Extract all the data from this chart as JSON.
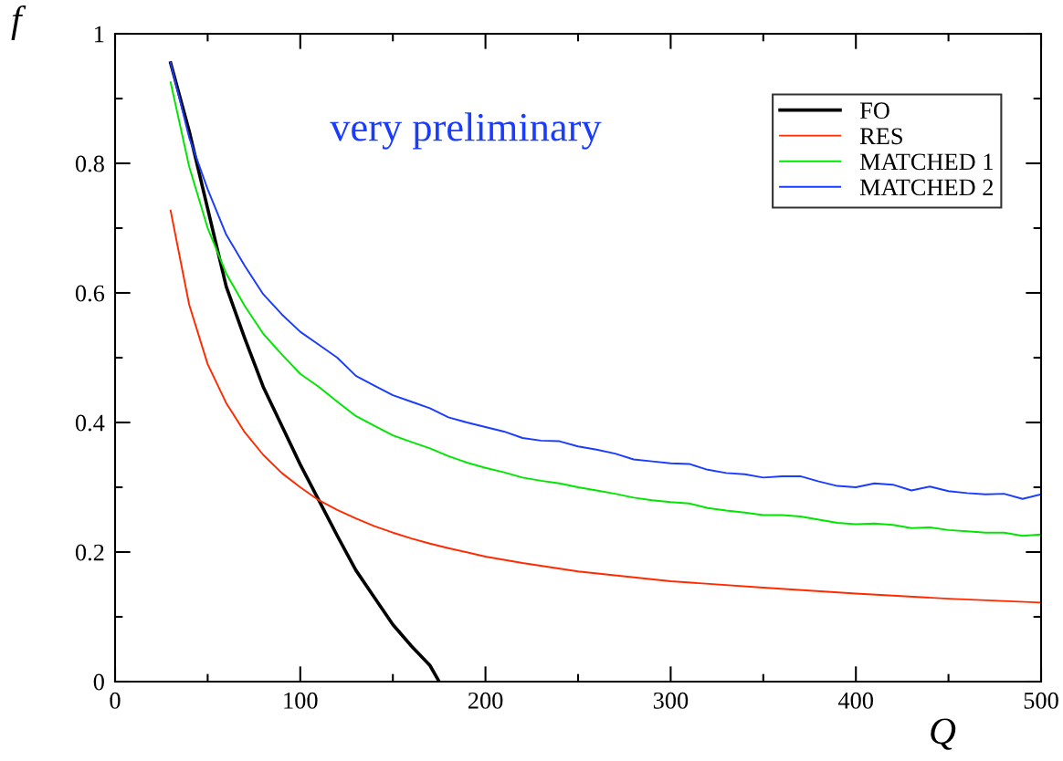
{
  "chart_data": {
    "type": "line",
    "xlabel": "Q",
    "ylabel": "f",
    "annotations": [
      "very preliminary"
    ],
    "xlim": [
      0,
      500
    ],
    "xticks": [
      0,
      100,
      200,
      300,
      400,
      500
    ],
    "ylim": [
      0,
      1
    ],
    "yticks": [
      0,
      0.2,
      0.4,
      0.6,
      0.8,
      1
    ],
    "grid": false,
    "legend": "top right",
    "marker": "none",
    "line_style": "solid",
    "series": [
      {
        "name": "FO",
        "color": "#000000",
        "x": [
          30,
          40,
          50,
          60,
          70,
          80,
          90,
          100,
          110,
          120,
          130,
          140,
          150,
          160,
          170,
          175
        ],
        "values": [
          0.955,
          0.85,
          0.73,
          0.61,
          0.53,
          0.455,
          0.395,
          0.335,
          0.28,
          0.225,
          0.172,
          0.13,
          0.088,
          0.055,
          0.025,
          0
        ]
      },
      {
        "name": "RES",
        "color": "#ff2a00",
        "x": [
          30,
          40,
          50,
          60,
          70,
          80,
          90,
          100,
          110,
          120,
          130,
          140,
          150,
          160,
          170,
          180,
          200,
          220,
          250,
          300,
          350,
          400,
          450,
          500
        ],
        "values": [
          0.727,
          0.582,
          0.49,
          0.43,
          0.385,
          0.35,
          0.322,
          0.3,
          0.28,
          0.265,
          0.252,
          0.24,
          0.23,
          0.221,
          0.213,
          0.206,
          0.193,
          0.183,
          0.17,
          0.155,
          0.145,
          0.136,
          0.128,
          0.122
        ]
      },
      {
        "name": "MATCHED 1",
        "color": "#00e600",
        "x": [
          30,
          40,
          50,
          60,
          70,
          80,
          90,
          100,
          110,
          120,
          130,
          140,
          150,
          160,
          170,
          180,
          190,
          200,
          210,
          220,
          230,
          240,
          250,
          260,
          270,
          280,
          290,
          300,
          310,
          320,
          330,
          340,
          350,
          360,
          370,
          380,
          390,
          400,
          410,
          420,
          430,
          440,
          450,
          460,
          470,
          480,
          490,
          500
        ],
        "values": [
          0.925,
          0.795,
          0.7,
          0.63,
          0.58,
          0.537,
          0.505,
          0.475,
          0.455,
          0.432,
          0.41,
          0.395,
          0.38,
          0.37,
          0.36,
          0.348,
          0.338,
          0.33,
          0.323,
          0.315,
          0.31,
          0.306,
          0.3,
          0.295,
          0.29,
          0.284,
          0.28,
          0.277,
          0.275,
          0.268,
          0.264,
          0.261,
          0.257,
          0.257,
          0.255,
          0.25,
          0.245,
          0.243,
          0.244,
          0.242,
          0.237,
          0.238,
          0.234,
          0.232,
          0.23,
          0.23,
          0.225,
          0.227
        ]
      },
      {
        "name": "MATCHED 2",
        "color": "#1a3cff",
        "x": [
          30,
          40,
          50,
          60,
          70,
          80,
          90,
          100,
          110,
          120,
          130,
          140,
          150,
          160,
          170,
          180,
          190,
          200,
          210,
          220,
          230,
          240,
          250,
          260,
          270,
          280,
          290,
          300,
          310,
          320,
          330,
          340,
          350,
          360,
          370,
          380,
          390,
          400,
          410,
          420,
          430,
          440,
          450,
          460,
          470,
          480,
          490,
          500
        ],
        "values": [
          0.955,
          0.84,
          0.76,
          0.69,
          0.642,
          0.598,
          0.567,
          0.54,
          0.52,
          0.5,
          0.472,
          0.457,
          0.442,
          0.432,
          0.422,
          0.408,
          0.4,
          0.393,
          0.386,
          0.376,
          0.372,
          0.371,
          0.363,
          0.358,
          0.352,
          0.343,
          0.34,
          0.337,
          0.336,
          0.327,
          0.322,
          0.32,
          0.315,
          0.317,
          0.317,
          0.309,
          0.302,
          0.3,
          0.306,
          0.304,
          0.295,
          0.301,
          0.294,
          0.291,
          0.289,
          0.29,
          0.282,
          0.289
        ]
      }
    ]
  }
}
